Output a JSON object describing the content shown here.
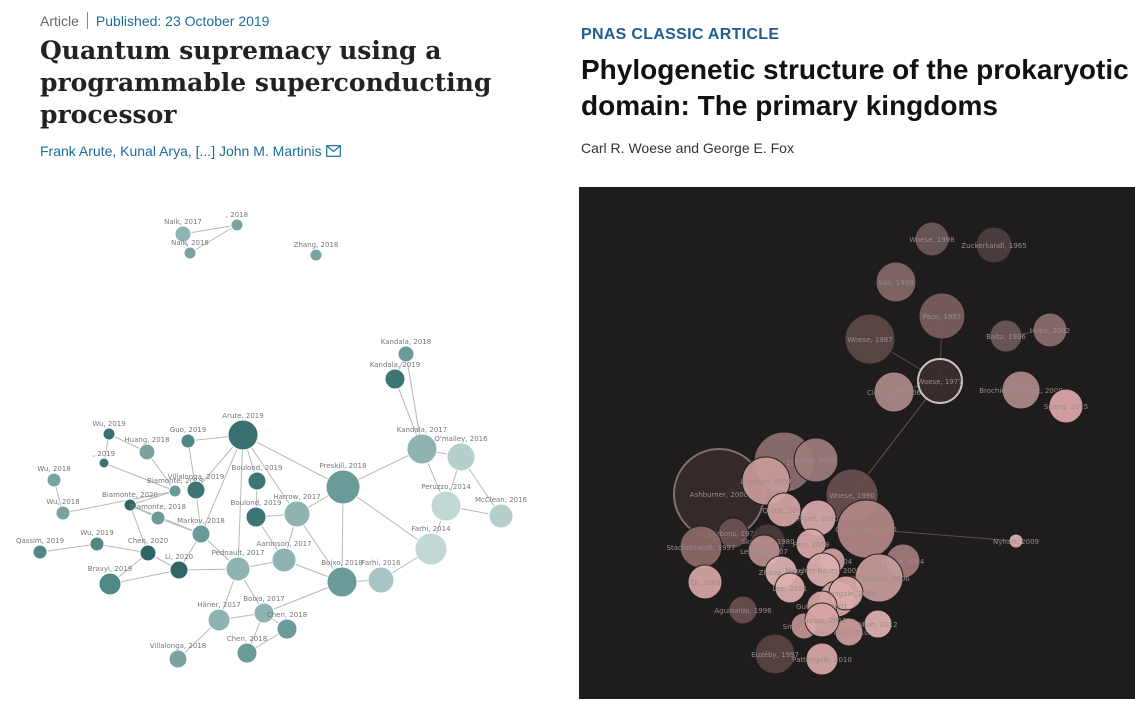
{
  "left_article": {
    "type_label": "Article",
    "published": "Published: 23 October 2019",
    "title_lines": [
      "Quantum supremacy using a",
      "programmable superconducting",
      "processor"
    ],
    "authors": "Frank Arute, Kunal Arya, [...] John M. Martinis",
    "mail_icon": "envelope-icon"
  },
  "right_article": {
    "label": "PNAS CLASSIC ARTICLE",
    "title_lines": [
      "Phylogenetic structure of the prokaryotic",
      "domain: The primary kingdoms"
    ],
    "authors": "Carl R. Woese and George E. Fox"
  },
  "left_network": {
    "background": "#ffffff",
    "nodes": [
      {
        "id": "naik2017",
        "label": "Naik, 2017",
        "r": 8,
        "c": "#8fb3b0"
      },
      {
        "id": "x2018",
        "label": ", 2018",
        "r": 6,
        "c": "#7aa3a0"
      },
      {
        "id": "naik2018",
        "label": "Naik, 2018",
        "r": 6,
        "c": "#7aa3a0"
      },
      {
        "id": "zhang2018",
        "label": "Zhang, 2018",
        "r": 6,
        "c": "#7aa3a0"
      },
      {
        "id": "kandala2018",
        "label": "Kandala, 2018",
        "r": 8,
        "c": "#6a9b98"
      },
      {
        "id": "kandala2019",
        "label": "Kandala, 2019",
        "r": 10,
        "c": "#3d7574"
      },
      {
        "id": "arute2019",
        "label": "Arute, 2019",
        "r": 15,
        "c": "#3a7170"
      },
      {
        "id": "wu2019a",
        "label": "Wu, 2019",
        "r": 6,
        "c": "#3a7170"
      },
      {
        "id": "huang2018",
        "label": "Huang, 2018",
        "r": 8,
        "c": "#7aa3a0"
      },
      {
        "id": "guo2019",
        "label": "Guo, 2019",
        "r": 7,
        "c": "#4f8887"
      },
      {
        "id": "x2019",
        "label": ", 2019",
        "r": 5,
        "c": "#3a7170"
      },
      {
        "id": "wu2018a",
        "label": "Wu, 2018",
        "r": 7,
        "c": "#7aa3a0"
      },
      {
        "id": "biamonte2018a",
        "label": "Biamonte, 2018",
        "r": 6,
        "c": "#6a9b98"
      },
      {
        "id": "villalonga2019",
        "label": "Villalonga, 2019",
        "r": 9,
        "c": "#3d7574"
      },
      {
        "id": "boulond2019a",
        "label": "Boulond, 2019",
        "r": 9,
        "c": "#3d7574"
      },
      {
        "id": "kandala2017",
        "label": "Kandala, 2017",
        "r": 15,
        "c": "#8fb3b0"
      },
      {
        "id": "omalley2016",
        "label": "O'malley, 2016",
        "r": 14,
        "c": "#b5cfcd"
      },
      {
        "id": "proctor2018",
        "label": "Preskill, 2018",
        "r": 17,
        "c": "#6a9b98"
      },
      {
        "id": "biamonte2020",
        "label": "Biamonte, 2020",
        "r": 6,
        "c": "#2f6665"
      },
      {
        "id": "biamonte2018b",
        "label": "Biamonte, 2018",
        "r": 7,
        "c": "#6a9b98"
      },
      {
        "id": "wu2018b",
        "label": "Wu, 2018",
        "r": 7,
        "c": "#7aa3a0"
      },
      {
        "id": "markov2018",
        "label": "Markov, 2018",
        "r": 9,
        "c": "#6a9b98"
      },
      {
        "id": "boulond2019b",
        "label": "Boulond, 2019",
        "r": 10,
        "c": "#3d7574"
      },
      {
        "id": "harrow2017",
        "label": "Harrow, 2017",
        "r": 13,
        "c": "#8fb3b0"
      },
      {
        "id": "peruzzo2014",
        "label": "Peruzzo, 2014",
        "r": 15,
        "c": "#c2d8d6"
      },
      {
        "id": "mcclean2016",
        "label": "McClean, 2016",
        "r": 12,
        "c": "#b5cfcd"
      },
      {
        "id": "qassim2019",
        "label": "Qassim, 2019",
        "r": 7,
        "c": "#4f8887"
      },
      {
        "id": "wu2019b",
        "label": "Wu, 2019",
        "r": 7,
        "c": "#4f8887"
      },
      {
        "id": "chen2020",
        "label": "Chen, 2020",
        "r": 8,
        "c": "#2f6665"
      },
      {
        "id": "li2020",
        "label": "Li, 2020",
        "r": 9,
        "c": "#2f6665"
      },
      {
        "id": "pednault2017",
        "label": "Pednault, 2017",
        "r": 12,
        "c": "#8fb3b0"
      },
      {
        "id": "aaronson2017",
        "label": "Aaronson, 2017",
        "r": 12,
        "c": "#8fb3b0"
      },
      {
        "id": "farhi2014",
        "label": "Farhi, 2014",
        "r": 16,
        "c": "#c2d8d6"
      },
      {
        "id": "bravyi2019",
        "label": "Bravyi, 2019",
        "r": 11,
        "c": "#4f8887"
      },
      {
        "id": "farhi2016",
        "label": "Farhi, 2016",
        "r": 13,
        "c": "#a9c5c3"
      },
      {
        "id": "boixo2018",
        "label": "Boixo, 2018",
        "r": 15,
        "c": "#6a9b98"
      },
      {
        "id": "haner2017",
        "label": "Häner, 2017",
        "r": 11,
        "c": "#8fb3b0"
      },
      {
        "id": "boixo2017",
        "label": "Boixo, 2017",
        "r": 10,
        "c": "#8fb3b0"
      },
      {
        "id": "chen2018a",
        "label": "Chen, 2018",
        "r": 10,
        "c": "#6a9b98"
      },
      {
        "id": "chen2018b",
        "label": "Chen, 2018",
        "r": 10,
        "c": "#6a9b98"
      },
      {
        "id": "villalonga2018",
        "label": "Villalonga, 2018",
        "r": 9,
        "c": "#7aa3a0"
      }
    ],
    "edges": [
      [
        "naik2017",
        "x2018"
      ],
      [
        "naik2017",
        "naik2018"
      ],
      [
        "x2018",
        "naik2018"
      ],
      [
        "kandala2018",
        "kandala2019"
      ],
      [
        "kandala2019",
        "kandala2017"
      ],
      [
        "kandala2018",
        "kandala2017"
      ],
      [
        "kandala2017",
        "omalley2016"
      ],
      [
        "kandala2017",
        "peruzzo2014"
      ],
      [
        "omalley2016",
        "peruzzo2014"
      ],
      [
        "peruzzo2014",
        "mcclean2016"
      ],
      [
        "peruzzo2014",
        "farhi2014"
      ],
      [
        "omalley2016",
        "mcclean2016"
      ],
      [
        "proctor2018",
        "kandala2017"
      ],
      [
        "proctor2018",
        "farhi2014"
      ],
      [
        "proctor2018",
        "boixo2018"
      ],
      [
        "proctor2018",
        "harrow2017"
      ],
      [
        "arute2019",
        "proctor2018"
      ],
      [
        "arute2019",
        "villalonga2019"
      ],
      [
        "arute2019",
        "boulond2019a"
      ],
      [
        "arute2019",
        "markov2018"
      ],
      [
        "arute2019",
        "guo2019"
      ],
      [
        "wu2019a",
        "huang2018"
      ],
      [
        "wu2019a",
        "x2019"
      ],
      [
        "x2019",
        "biamonte2018a"
      ],
      [
        "huang2018",
        "biamonte2018a"
      ],
      [
        "biamonte2018a",
        "biamonte2020"
      ],
      [
        "biamonte2020",
        "biamonte2018b"
      ],
      [
        "biamonte2020",
        "markov2018"
      ],
      [
        "biamonte2018b",
        "markov2018"
      ],
      [
        "guo2019",
        "villalonga2019"
      ],
      [
        "villalonga2019",
        "markov2018"
      ],
      [
        "markov2018",
        "pednault2017"
      ],
      [
        "markov2018",
        "li2020"
      ],
      [
        "chen2020",
        "li2020"
      ],
      [
        "chen2020",
        "biamonte2020"
      ],
      [
        "li2020",
        "pednault2017"
      ],
      [
        "boulond2019a",
        "boulond2019b"
      ],
      [
        "boulond2019b",
        "harrow2017"
      ],
      [
        "boulond2019b",
        "aaronson2017"
      ],
      [
        "harrow2017",
        "aaronson2017"
      ],
      [
        "aaronson2017",
        "boixo2018"
      ],
      [
        "aaronson2017",
        "pednault2017"
      ],
      [
        "boixo2018",
        "farhi2016"
      ],
      [
        "boixo2018",
        "boixo2017"
      ],
      [
        "pednault2017",
        "boixo2017"
      ],
      [
        "boixo2017",
        "chen2018a"
      ],
      [
        "boixo2017",
        "chen2018b"
      ],
      [
        "haner2017",
        "boixo2017"
      ],
      [
        "haner2017",
        "pednault2017"
      ],
      [
        "chen2018a",
        "chen2018b"
      ],
      [
        "villalonga2018",
        "haner2017"
      ],
      [
        "wu2018a",
        "wu2018b"
      ],
      [
        "wu2018b",
        "biamonte2018a"
      ],
      [
        "wu2019b",
        "chen2020"
      ],
      [
        "qassim2019",
        "wu2019b"
      ],
      [
        "bravyi2019",
        "li2020"
      ],
      [
        "bravyi2019",
        "chen2020"
      ],
      [
        "farhi2014",
        "farhi2016"
      ],
      [
        "arute2019",
        "boixo2018"
      ],
      [
        "arute2019",
        "pednault2017"
      ]
    ]
  },
  "right_network": {
    "background": "#1e1c1c",
    "nodes": [
      {
        "id": "woese1998",
        "label": "Woese, 1998",
        "r": 17,
        "c": "#6e5858"
      },
      {
        "id": "zuckerkandl1965",
        "label": "Zuckerkandl, 1965",
        "r": 18,
        "c": "#4d3f3f"
      },
      {
        "id": "sali1999",
        "label": "Sali, 1999",
        "r": 20,
        "c": "#856868"
      },
      {
        "id": "pace1997",
        "label": "Pace, 1997",
        "r": 23,
        "c": "#7b5f5f"
      },
      {
        "id": "woese1987",
        "label": "Woese, 1987",
        "r": 25,
        "c": "#5e4848"
      },
      {
        "id": "baltz1996",
        "label": "Baltz, 1996",
        "r": 16,
        "c": "#6e5858"
      },
      {
        "id": "hobo2002",
        "label": "Hobo, 2002",
        "r": 17,
        "c": "#8c6e6e"
      },
      {
        "id": "woese1977",
        "label": "Woese, 1977",
        "r": 22,
        "c": "#3b2f2f",
        "stroke": "#d8d0d0"
      },
      {
        "id": "ciccarelli2006",
        "label": "Ciccarelli, 2006",
        "r": 20,
        "c": "#b08a8a"
      },
      {
        "id": "brochier2008",
        "label": "Brochier-Armanet, 2008",
        "r": 19,
        "c": "#b08a8a"
      },
      {
        "id": "spang2015",
        "label": "Spang, 2015",
        "r": 17,
        "c": "#dfa8ab"
      },
      {
        "id": "ashburner2000",
        "label": "Ashburner, 2000",
        "r": 45,
        "c": "#382c2c",
        "stroke": "#8a7777"
      },
      {
        "id": "lowe1997",
        "label": "Lowe, 1997",
        "r": 30,
        "c": "#8e6f6f"
      },
      {
        "id": "chen2008",
        "label": "Chen, 2008",
        "r": 22,
        "c": "#9e7c7c"
      },
      {
        "id": "lagesen2007",
        "label": "Lagesen, 2007",
        "r": 24,
        "c": "#c99a9a"
      },
      {
        "id": "woese1990",
        "label": "Woese, 1990",
        "r": 26,
        "c": "#6b4f4f"
      },
      {
        "id": "quast2013",
        "label": "Quast, 2013",
        "r": 17,
        "c": "#d7a6a6"
      },
      {
        "id": "hyatt2010",
        "label": "Hyatt, 2010",
        "r": 18,
        "c": "#d9aaaa"
      },
      {
        "id": "gibbons1978",
        "label": "Gibbons, 1978",
        "r": 15,
        "c": "#6d5252"
      },
      {
        "id": "skerman1980",
        "label": "Skerman, 1980",
        "r": 17,
        "c": "#4d3b3b"
      },
      {
        "id": "stackebrandt1997",
        "label": "Stackebrandt, 1997",
        "r": 21,
        "c": "#8e6a6a"
      },
      {
        "id": "finn2008",
        "label": "Finn, 2008",
        "r": 15,
        "c": "#dba9a9"
      },
      {
        "id": "koski",
        "label": "Koski, 2004",
        "r": 13,
        "c": "#d3a0a0"
      },
      {
        "id": "castresana2000",
        "label": "Castresana, 2000",
        "r": 29,
        "c": "#b48787"
      },
      {
        "id": "edgar2004",
        "label": "Edgar, 2004",
        "r": 17,
        "c": "#a57c7c"
      },
      {
        "id": "nyhart2009",
        "label": "Nyhart, 2009",
        "r": 7,
        "c": "#e0b0b3"
      },
      {
        "id": "letunic2007",
        "label": "Letunic, 2007",
        "r": 16,
        "c": "#b88e8e"
      },
      {
        "id": "zhang2009",
        "label": "Zhang, 2009",
        "r": 16,
        "c": "#e1b2b2"
      },
      {
        "id": "marchler",
        "label": "Marchler-Bauer, 2009",
        "r": 17,
        "c": "#ddb0b0"
      },
      {
        "id": "stamatakis2006",
        "label": "Stamatakis, 2006",
        "r": 24,
        "c": "#c99c9c"
      },
      {
        "id": "ludwig2004",
        "label": "Ludwig, 2004",
        "r": 18,
        "c": "#d6a7a7"
      },
      {
        "id": "lee2001",
        "label": "Lee, 2001",
        "r": 15,
        "c": "#e0b0b0"
      },
      {
        "id": "zil2009",
        "label": "Zil, 2009",
        "r": 17,
        "c": "#d9a6a6"
      },
      {
        "id": "pattengale2009",
        "label": "Pattengale, 2009",
        "r": 17,
        "c": "#deacac"
      },
      {
        "id": "guindon2001",
        "label": "Guindon, 2001",
        "r": 15,
        "c": "#d8a4a4"
      },
      {
        "id": "aguinaldo1996",
        "label": "Aguinaldo, 1996",
        "r": 14,
        "c": "#6b4f4f"
      },
      {
        "id": "smith2010",
        "label": "Smith, 2010",
        "r": 13,
        "c": "#c59393"
      },
      {
        "id": "price2010",
        "label": "Price, 2010",
        "r": 14,
        "c": "#cf9c9c"
      },
      {
        "id": "minh2012",
        "label": "Minh, 2012",
        "r": 14,
        "c": "#e0b2b2"
      },
      {
        "id": "pruesse2012",
        "label": "Pruesse, 2012",
        "r": 17,
        "c": "#d9a6a6"
      },
      {
        "id": "euzeby1997",
        "label": "Euzéby, 1997",
        "r": 20,
        "c": "#5a4444"
      },
      {
        "id": "pattengale2010",
        "label": "Pattengale, 2010",
        "r": 16,
        "c": "#dba9a9"
      }
    ],
    "edges": [
      [
        "woese1977",
        "woese1990"
      ],
      [
        "woese1977",
        "ciccarelli2006"
      ],
      [
        "woese1977",
        "pace1997"
      ],
      [
        "woese1977",
        "woese1987"
      ],
      [
        "baltz1996",
        "hobo2002"
      ],
      [
        "ashburner2000",
        "lowe1997"
      ],
      [
        "ashburner2000",
        "lagesen2007"
      ],
      [
        "woese1990",
        "castresana2000"
      ],
      [
        "castresana2000",
        "nyhart2009"
      ],
      [
        "lowe1997",
        "chen2008"
      ],
      [
        "lagesen2007",
        "quast2013"
      ],
      [
        "quast2013",
        "hyatt2010"
      ],
      [
        "stackebrandt1997",
        "gibbons1978"
      ],
      [
        "stamatakis2006",
        "pruesse2012"
      ],
      [
        "woese1990",
        "woese1977"
      ]
    ]
  }
}
